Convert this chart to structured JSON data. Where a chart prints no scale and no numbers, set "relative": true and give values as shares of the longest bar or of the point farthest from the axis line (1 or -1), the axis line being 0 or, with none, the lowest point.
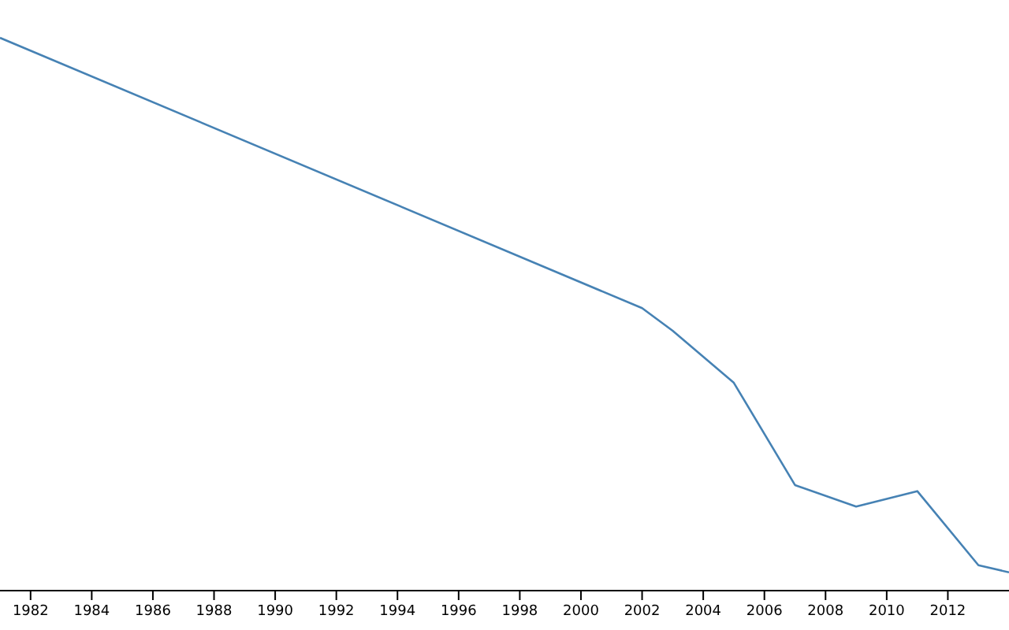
{
  "chart_data": {
    "type": "line",
    "relative": true,
    "xlim": [
      1981,
      2014
    ],
    "xticks": [
      1982,
      1984,
      1986,
      1988,
      1990,
      1992,
      1994,
      1996,
      1998,
      2000,
      2002,
      2004,
      2006,
      2008,
      2010,
      2012
    ],
    "series": [
      {
        "color": "#4682b4",
        "x": [
          1981,
          2002,
          2003,
          2005,
          2007,
          2009,
          2011,
          2013,
          2014
        ],
        "values": [
          1.0,
          0.511,
          0.47,
          0.376,
          0.191,
          0.152,
          0.18,
          0.046,
          0.033
        ]
      }
    ],
    "marker": "none",
    "line_style": "solid"
  }
}
